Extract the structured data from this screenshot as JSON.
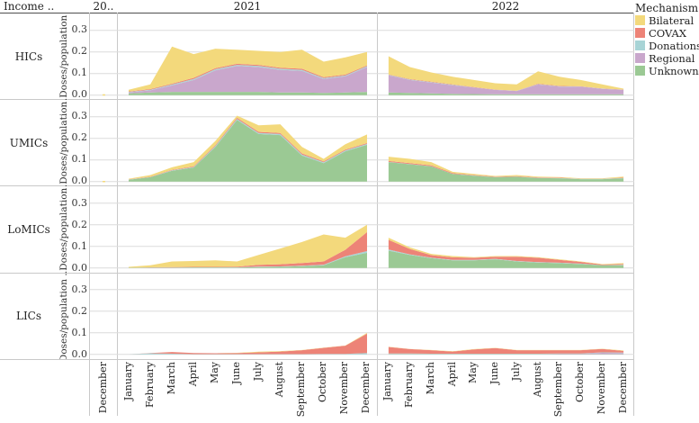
{
  "header": {
    "income_label": "Income ..",
    "panel_2020_label": "20..",
    "panel_2021_label": "2021",
    "panel_2022_label": "2022"
  },
  "legend": {
    "title": "Mechanism",
    "items": [
      "Bilateral",
      "COVAX",
      "Donations",
      "Regional",
      "Unknown"
    ]
  },
  "chart_data": {
    "type": "area",
    "stacked": true,
    "title": "",
    "xlabel": "",
    "ylabel_per_row": true,
    "ylim": [
      0,
      0.32
    ],
    "yticks": [
      0.3,
      0.2,
      0.1,
      0.0
    ],
    "grid": true,
    "legend_position": "top-right",
    "stack_order_bottom_to_top": [
      "Unknown",
      "Regional",
      "Donations",
      "COVAX",
      "Bilateral"
    ],
    "colors": {
      "Bilateral": "#f3d97c",
      "COVAX": "#ed8377",
      "Donations": "#a8d4d6",
      "Regional": "#c9a7cc",
      "Unknown": "#9bc994"
    },
    "panels": [
      {
        "id": "p2020",
        "label": "20..",
        "months": [
          "December"
        ]
      },
      {
        "id": "p2021",
        "label": "2021",
        "months": [
          "January",
          "February",
          "March",
          "April",
          "May",
          "June",
          "July",
          "August",
          "September",
          "October",
          "November",
          "December"
        ]
      },
      {
        "id": "p2022",
        "label": "2022",
        "months": [
          "January",
          "February",
          "March",
          "April",
          "May",
          "June",
          "July",
          "August",
          "September",
          "October",
          "November",
          "December"
        ]
      }
    ],
    "rows": [
      {
        "label": "HICs",
        "ylabel": "..Doses/population .",
        "data": {
          "p2020": {
            "Unknown": [
              0
            ],
            "Regional": [
              0
            ],
            "Donations": [
              0
            ],
            "COVAX": [
              0
            ],
            "Bilateral": [
              0.004
            ]
          },
          "p2021": {
            "Unknown": [
              0.008,
              0.012,
              0.015,
              0.015,
              0.015,
              0.015,
              0.015,
              0.012,
              0.012,
              0.01,
              0.012,
              0.015
            ],
            "Regional": [
              0.005,
              0.01,
              0.03,
              0.055,
              0.1,
              0.12,
              0.115,
              0.105,
              0.1,
              0.065,
              0.075,
              0.115
            ],
            "Donations": [
              0.002,
              0.003,
              0.004,
              0.005,
              0.005,
              0.005,
              0.005,
              0.005,
              0.005,
              0.004,
              0.004,
              0.004
            ],
            "COVAX": [
              0.002,
              0.003,
              0.004,
              0.005,
              0.005,
              0.005,
              0.005,
              0.005,
              0.005,
              0.004,
              0.004,
              0.004
            ],
            "Bilateral": [
              0.008,
              0.022,
              0.172,
              0.11,
              0.09,
              0.065,
              0.065,
              0.073,
              0.088,
              0.072,
              0.08,
              0.062
            ]
          },
          "p2022": {
            "Unknown": [
              0.012,
              0.01,
              0.008,
              0.006,
              0.005,
              0.004,
              0.004,
              0.004,
              0.004,
              0.004,
              0.004,
              0.004
            ],
            "Regional": [
              0.08,
              0.06,
              0.05,
              0.04,
              0.03,
              0.02,
              0.015,
              0.045,
              0.035,
              0.035,
              0.025,
              0.02
            ],
            "Donations": [
              0.002,
              0.002,
              0.002,
              0.002,
              0.001,
              0.001,
              0.001,
              0.002,
              0.002,
              0.001,
              0.001,
              0.001
            ],
            "COVAX": [
              0.002,
              0.002,
              0.002,
              0.002,
              0.001,
              0.001,
              0.001,
              0.002,
              0.002,
              0.001,
              0.001,
              0.001
            ],
            "Bilateral": [
              0.084,
              0.056,
              0.043,
              0.035,
              0.033,
              0.029,
              0.029,
              0.057,
              0.042,
              0.029,
              0.019,
              0.004
            ]
          }
        }
      },
      {
        "label": "UMICs",
        "ylabel": "..Doses/population .",
        "data": {
          "p2020": {
            "Unknown": [
              0
            ],
            "Regional": [
              0
            ],
            "Donations": [
              0
            ],
            "COVAX": [
              0
            ],
            "Bilateral": [
              0.003
            ]
          },
          "p2021": {
            "Unknown": [
              0.008,
              0.02,
              0.05,
              0.065,
              0.16,
              0.285,
              0.22,
              0.215,
              0.12,
              0.085,
              0.14,
              0.17
            ],
            "Regional": [
              0,
              0,
              0,
              0,
              0,
              0,
              0,
              0,
              0,
              0,
              0,
              0
            ],
            "Donations": [
              0.001,
              0.001,
              0.002,
              0.002,
              0.004,
              0.005,
              0.005,
              0.005,
              0.005,
              0.004,
              0.004,
              0.004
            ],
            "COVAX": [
              0.001,
              0.001,
              0.002,
              0.003,
              0.004,
              0.005,
              0.005,
              0.005,
              0.005,
              0.004,
              0.004,
              0.004
            ],
            "Bilateral": [
              0.003,
              0.008,
              0.012,
              0.02,
              0.02,
              0.01,
              0.03,
              0.04,
              0.03,
              0.012,
              0.025,
              0.04
            ]
          },
          "p2022": {
            "Unknown": [
              0.09,
              0.08,
              0.07,
              0.035,
              0.027,
              0.02,
              0.022,
              0.016,
              0.015,
              0.011,
              0.011,
              0.015
            ],
            "Regional": [
              0,
              0,
              0,
              0,
              0,
              0,
              0,
              0,
              0,
              0,
              0,
              0
            ],
            "Donations": [
              0.001,
              0.001,
              0.001,
              0.001,
              0.001,
              0.001,
              0.001,
              0.001,
              0.001,
              0.001,
              0.001,
              0.001
            ],
            "COVAX": [
              0.004,
              0.004,
              0.004,
              0.003,
              0.002,
              0.002,
              0.002,
              0.002,
              0.002,
              0.001,
              0.001,
              0.002
            ],
            "Bilateral": [
              0.02,
              0.02,
              0.015,
              0.006,
              0.005,
              0.003,
              0.005,
              0.004,
              0.003,
              0.002,
              0.002,
              0.005
            ]
          }
        }
      },
      {
        "label": "LoMICs",
        "ylabel": "..Doses/population .",
        "data": {
          "p2020": {
            "Unknown": [
              0
            ],
            "Regional": [
              0
            ],
            "Donations": [
              0
            ],
            "COVAX": [
              0
            ],
            "Bilateral": [
              0
            ]
          },
          "p2021": {
            "Unknown": [
              0.001,
              0.001,
              0.001,
              0.002,
              0.002,
              0.002,
              0.004,
              0.005,
              0.008,
              0.012,
              0.05,
              0.07
            ],
            "Regional": [
              0,
              0,
              0,
              0,
              0,
              0,
              0,
              0,
              0,
              0,
              0,
              0
            ],
            "Donations": [
              0.0,
              0.001,
              0.001,
              0.001,
              0.001,
              0.001,
              0.002,
              0.002,
              0.002,
              0.003,
              0.004,
              0.008
            ],
            "COVAX": [
              0.0,
              0.001,
              0.002,
              0.002,
              0.002,
              0.003,
              0.008,
              0.01,
              0.013,
              0.015,
              0.03,
              0.088
            ],
            "Bilateral": [
              0.004,
              0.009,
              0.026,
              0.027,
              0.03,
              0.024,
              0.046,
              0.073,
              0.097,
              0.125,
              0.056,
              0.034
            ]
          },
          "p2022": {
            "Unknown": [
              0.08,
              0.06,
              0.045,
              0.035,
              0.035,
              0.04,
              0.03,
              0.025,
              0.022,
              0.018,
              0.012,
              0.012
            ],
            "Regional": [
              0,
              0,
              0,
              0,
              0,
              0,
              0,
              0,
              0,
              0,
              0,
              0
            ],
            "Donations": [
              0.005,
              0.003,
              0.002,
              0.002,
              0.002,
              0.002,
              0.002,
              0.002,
              0.002,
              0.002,
              0.001,
              0.002
            ],
            "COVAX": [
              0.045,
              0.025,
              0.012,
              0.012,
              0.01,
              0.01,
              0.02,
              0.02,
              0.013,
              0.008,
              0.003,
              0.004
            ],
            "Bilateral": [
              0.01,
              0.007,
              0.006,
              0.006,
              0.003,
              0.003,
              0.003,
              0.003,
              0.003,
              0.002,
              0.002,
              0.004
            ]
          }
        }
      },
      {
        "label": "LICs",
        "ylabel": "Doses/population ..",
        "data": {
          "p2020": {
            "Unknown": [
              0
            ],
            "Regional": [
              0
            ],
            "Donations": [
              0
            ],
            "COVAX": [
              0
            ],
            "Bilateral": [
              0
            ]
          },
          "p2021": {
            "Unknown": [
              0,
              0,
              0,
              0,
              0,
              0,
              0,
              0,
              0,
              0,
              0,
              0
            ],
            "Regional": [
              0,
              0,
              0,
              0,
              0,
              0,
              0,
              0,
              0,
              0,
              0,
              0
            ],
            "Donations": [
              0.0,
              0.005,
              0.003,
              0.001,
              0.001,
              0.001,
              0.001,
              0.001,
              0.001,
              0.002,
              0.002,
              0.006
            ],
            "COVAX": [
              0.0,
              0.001,
              0.008,
              0.005,
              0.004,
              0.005,
              0.008,
              0.012,
              0.018,
              0.028,
              0.038,
              0.09
            ],
            "Bilateral": [
              0.0,
              0.0,
              0.0,
              0.0,
              0.0,
              0.001,
              0.003,
              0.002,
              0.001,
              0.001,
              0.001,
              0.003
            ]
          },
          "p2022": {
            "Unknown": [
              0.001,
              0.001,
              0.001,
              0.001,
              0.001,
              0.001,
              0.001,
              0.001,
              0.001,
              0.001,
              0.001,
              0.001
            ],
            "Regional": [
              0.001,
              0.001,
              0.001,
              0.001,
              0.001,
              0.001,
              0.001,
              0.001,
              0.002,
              0.002,
              0.006,
              0.005
            ],
            "Donations": [
              0.002,
              0.002,
              0.001,
              0.001,
              0.001,
              0.001,
              0.001,
              0.001,
              0.001,
              0.001,
              0.002,
              0.002
            ],
            "COVAX": [
              0.03,
              0.02,
              0.016,
              0.01,
              0.02,
              0.026,
              0.016,
              0.016,
              0.015,
              0.015,
              0.016,
              0.008
            ],
            "Bilateral": [
              0.001,
              0.001,
              0.001,
              0.001,
              0.001,
              0.001,
              0.001,
              0.001,
              0.001,
              0.001,
              0.001,
              0.002
            ]
          }
        }
      }
    ]
  }
}
